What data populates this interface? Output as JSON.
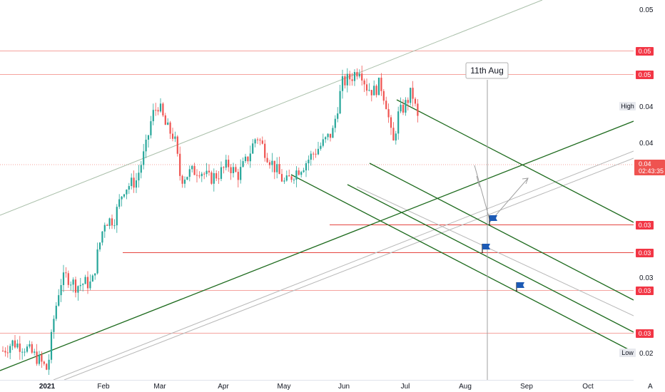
{
  "chart_data": {
    "type": "candlestick",
    "x_labels": [
      "2021",
      "Feb",
      "Mar",
      "Apr",
      "May",
      "Jun",
      "Jul",
      "Aug",
      "Sep",
      "Oct"
    ],
    "y_ticks": [
      "0.05",
      "0.04",
      "0.04",
      "0.03",
      "0.03",
      "0.02"
    ],
    "price_tag": {
      "value": "0.04",
      "countdown": "02:43:35"
    },
    "horizontal_levels": [
      {
        "label": "0.05"
      },
      {
        "label": "0.05"
      },
      {
        "label": "0.03"
      },
      {
        "label": "0.03"
      },
      {
        "label": "0.03"
      },
      {
        "label": "0.03"
      }
    ],
    "high_label": {
      "name": "High",
      "value": "0.04"
    },
    "low_label": {
      "name": "Low",
      "value": "0.02"
    },
    "annotation": {
      "text": "11th Aug"
    },
    "corner_label": "A",
    "colors": {
      "up": "#26a69a",
      "down": "#ef5350",
      "level": "#f23645",
      "trend": "#1b6b1b",
      "channel": "#a5b4a5"
    },
    "price_path": [
      [
        0.0045,
        0.023
      ],
      [
        0.02,
        0.0235
      ],
      [
        0.04,
        0.0232
      ],
      [
        0.06,
        0.0225
      ],
      [
        0.075,
        0.0218
      ],
      [
        0.085,
        0.025
      ],
      [
        0.095,
        0.0272
      ],
      [
        0.105,
        0.0276
      ],
      [
        0.12,
        0.027
      ],
      [
        0.135,
        0.0272
      ],
      [
        0.145,
        0.0271
      ],
      [
        0.155,
        0.0292
      ],
      [
        0.165,
        0.031
      ],
      [
        0.18,
        0.0311
      ],
      [
        0.195,
        0.033
      ],
      [
        0.215,
        0.0335
      ],
      [
        0.23,
        0.0355
      ],
      [
        0.24,
        0.0375
      ],
      [
        0.25,
        0.0382
      ],
      [
        0.262,
        0.0368
      ],
      [
        0.275,
        0.0362
      ],
      [
        0.285,
        0.0336
      ],
      [
        0.3,
        0.034
      ],
      [
        0.315,
        0.0342
      ],
      [
        0.33,
        0.0336
      ],
      [
        0.345,
        0.0339
      ],
      [
        0.36,
        0.0345
      ],
      [
        0.375,
        0.0338
      ],
      [
        0.39,
        0.0348
      ],
      [
        0.405,
        0.0363
      ],
      [
        0.42,
        0.0352
      ],
      [
        0.435,
        0.0342
      ],
      [
        0.45,
        0.0333
      ],
      [
        0.465,
        0.034
      ],
      [
        0.48,
        0.0345
      ],
      [
        0.495,
        0.0352
      ],
      [
        0.51,
        0.0358
      ],
      [
        0.525,
        0.0365
      ],
      [
        0.54,
        0.0395
      ],
      [
        0.555,
        0.0399
      ],
      [
        0.568,
        0.0405
      ],
      [
        0.578,
        0.0393
      ],
      [
        0.59,
        0.039
      ],
      [
        0.6,
        0.0395
      ],
      [
        0.61,
        0.0382
      ],
      [
        0.62,
        0.0356
      ],
      [
        0.628,
        0.0375
      ],
      [
        0.64,
        0.0382
      ],
      [
        0.65,
        0.039
      ],
      [
        0.662,
        0.0368
      ]
    ],
    "price_range": [
      0.0212,
      0.0442
    ]
  }
}
